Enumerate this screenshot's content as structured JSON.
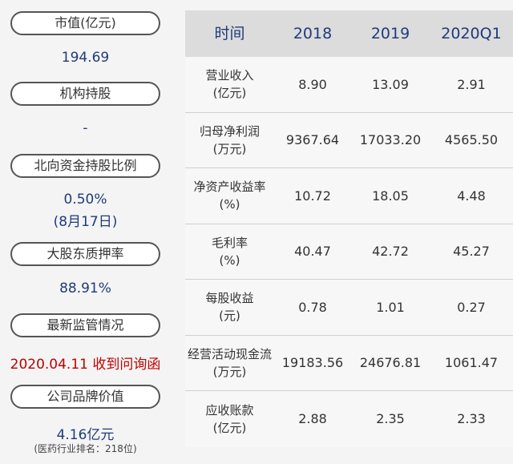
{
  "left": {
    "items": [
      {
        "label": "市值(亿元)",
        "value": "194.69"
      },
      {
        "label": "机构持股",
        "value": "-"
      },
      {
        "label": "北向资金持股比例",
        "value": "0.50%",
        "value2": "(8月17日)"
      },
      {
        "label": "大股东质押率",
        "value": "88.91%"
      },
      {
        "label": "最新监管情况",
        "value": "2020.04.11 收到问询函"
      },
      {
        "label": "公司品牌价值",
        "value": "4.16亿元",
        "value2": "(医药行业排名：218位)"
      }
    ]
  },
  "table": {
    "headers": [
      "时间",
      "2018",
      "2019",
      "2020Q1"
    ],
    "rows": [
      {
        "name": "营业收入",
        "unit": "(亿元)",
        "v": [
          "8.90",
          "13.09",
          "2.91"
        ]
      },
      {
        "name": "归母净利润",
        "unit": "(万元)",
        "v": [
          "9367.64",
          "17033.20",
          "4565.50"
        ]
      },
      {
        "name": "净资产收益率",
        "unit": "(%)",
        "v": [
          "10.72",
          "18.05",
          "4.48"
        ]
      },
      {
        "name": "毛利率",
        "unit": "(%)",
        "v": [
          "40.47",
          "42.72",
          "45.27"
        ]
      },
      {
        "name": "每股收益",
        "unit": "(元)",
        "v": [
          "0.78",
          "1.01",
          "0.27"
        ]
      },
      {
        "name": "经营活动现金流",
        "unit": "(万元)",
        "v": [
          "19183.56",
          "24676.81",
          "1061.47"
        ]
      },
      {
        "name": "应收账款",
        "unit": "(亿元)",
        "v": [
          "2.88",
          "2.35",
          "2.33"
        ]
      }
    ]
  }
}
